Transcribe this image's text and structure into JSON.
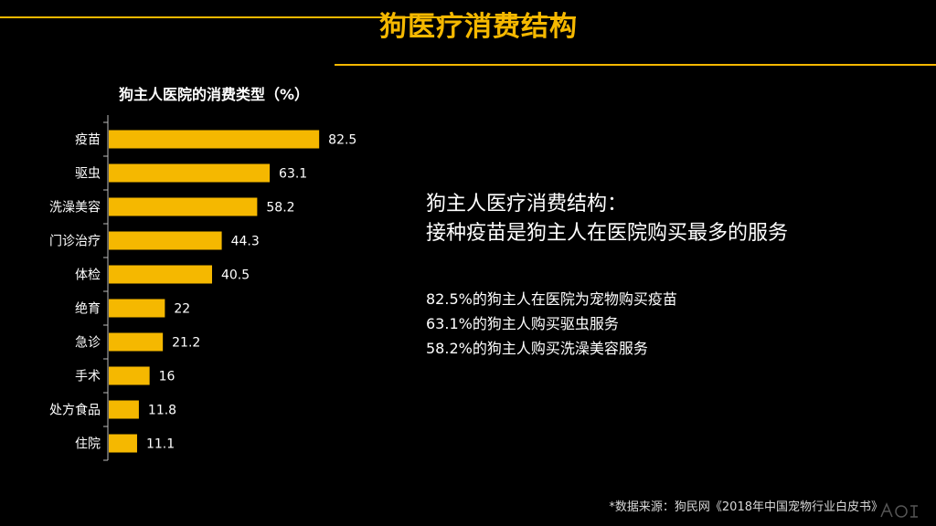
{
  "slide": {
    "title": "狗医疗消费结构"
  },
  "chart_data": {
    "type": "bar",
    "orientation": "horizontal",
    "title": "狗主人医院的消费类型（%）",
    "categories": [
      "疫苗",
      "驱虫",
      "洗澡美容",
      "门诊治疗",
      "体检",
      "绝育",
      "急诊",
      "手术",
      "处方食品",
      "住院"
    ],
    "values": [
      82.5,
      63.1,
      58.2,
      44.3,
      40.5,
      22,
      21.2,
      16,
      11.8,
      11.1
    ],
    "value_labels": [
      "82.5",
      "63.1",
      "58.2",
      "44.3",
      "40.5",
      "22",
      "21.2",
      "16",
      "11.8",
      "11.1"
    ],
    "xlim": [
      0,
      100
    ],
    "grid": false,
    "legend": "none",
    "bar_color": "#f5b800"
  },
  "summary": {
    "title_line1": "狗主人医疗消费结构：",
    "title_line2": "接种疫苗是狗主人在医院购买最多的服务",
    "points": [
      "82.5%的狗主人在医院为宠物购买疫苗",
      "63.1%的狗主人购买驱虫服务",
      "58.2%的狗主人购买洗澡美容服务"
    ]
  },
  "source": "*数据来源：狗民网《2018年中国宠物行业白皮书》",
  "colors": {
    "accent": "#f5b800",
    "background": "#000000",
    "text": "#ffffff"
  }
}
